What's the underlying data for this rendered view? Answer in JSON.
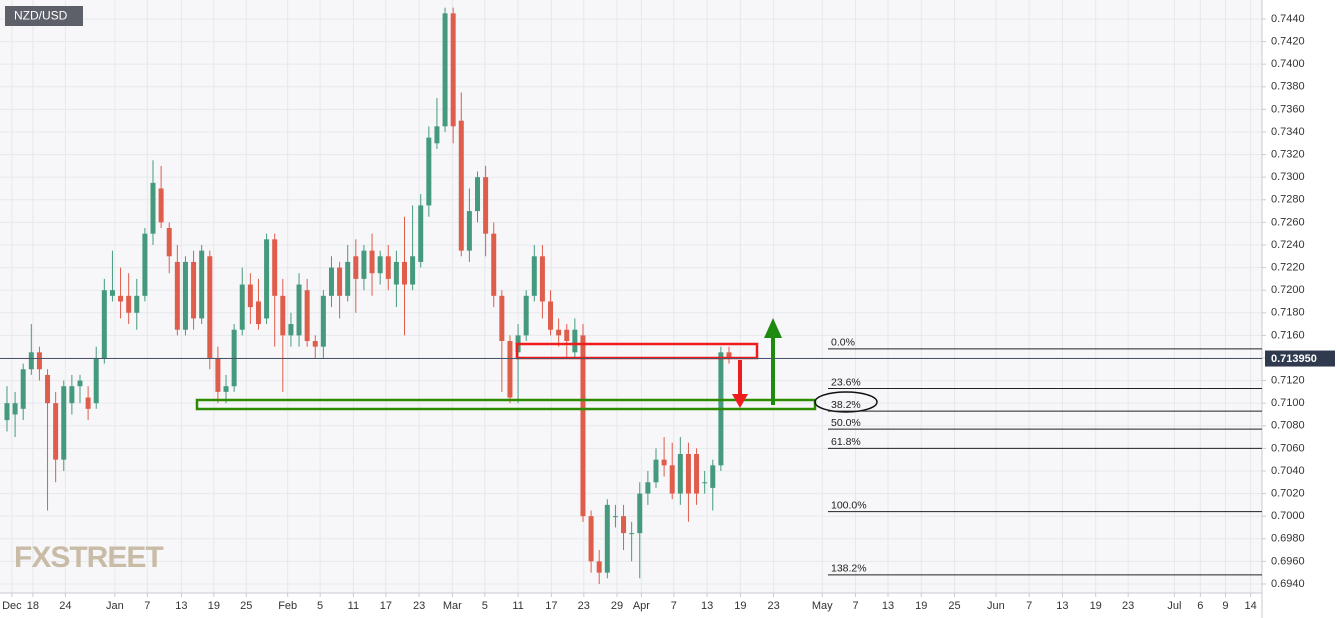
{
  "chart_data": {
    "type": "candlestick",
    "title": "NZD/USD",
    "watermark": "FXSTREET",
    "up_color": "#459a7e",
    "down_color": "#df5d4b",
    "x": [
      0,
      1,
      2,
      3,
      4,
      5,
      6,
      7,
      8,
      9,
      10,
      11,
      12,
      13,
      14,
      15,
      16,
      17,
      18,
      19,
      20,
      21,
      22,
      23,
      24,
      25,
      26,
      27,
      28,
      29,
      30,
      31,
      32,
      33,
      34,
      35,
      36,
      37,
      38,
      39,
      40,
      41,
      42,
      43,
      44,
      45,
      46,
      47,
      48,
      49,
      50,
      51,
      52,
      53,
      54,
      55,
      56,
      57,
      58,
      59,
      60,
      61,
      62,
      63,
      64,
      65,
      66,
      67,
      68,
      69,
      70,
      71,
      72,
      73,
      74,
      75,
      76,
      77,
      78,
      79,
      80,
      81,
      82,
      83,
      84,
      85,
      86,
      87,
      88,
      89
    ],
    "open": [
      0.7085,
      0.709,
      0.7095,
      0.713,
      0.7145,
      0.7125,
      0.71,
      0.705,
      0.71,
      0.7115,
      0.7105,
      0.71,
      0.714,
      0.7195,
      0.7195,
      0.7195,
      0.718,
      0.7195,
      0.725,
      0.729,
      0.7255,
      0.7225,
      0.7165,
      0.7225,
      0.7175,
      0.723,
      0.714,
      0.711,
      0.7115,
      0.7165,
      0.7205,
      0.719,
      0.7175,
      0.7245,
      0.7195,
      0.716,
      0.716,
      0.72,
      0.7155,
      0.715,
      0.7195,
      0.722,
      0.7195,
      0.723,
      0.721,
      0.7235,
      0.7215,
      0.723,
      0.7205,
      0.7225,
      0.7205,
      0.7225,
      0.7275,
      0.733,
      0.7345,
      0.7445,
      0.735,
      0.7235,
      0.727,
      0.73,
      0.725,
      0.7195,
      0.7155,
      0.7145,
      0.716,
      0.7195,
      0.723,
      0.719,
      0.7165,
      0.7165,
      0.7145,
      0.716,
      0.7,
      0.696,
      0.695,
      0.7,
      0.7,
      0.6985,
      0.6985,
      0.702,
      0.703,
      0.705,
      0.7045,
      0.702,
      0.7055,
      0.7055,
      0.703,
      0.7025,
      0.7045,
      0.7145
    ],
    "high": [
      0.7115,
      0.711,
      0.7135,
      0.717,
      0.715,
      0.713,
      0.711,
      0.712,
      0.7125,
      0.7125,
      0.7115,
      0.715,
      0.721,
      0.7235,
      0.722,
      0.7215,
      0.721,
      0.7255,
      0.7315,
      0.731,
      0.726,
      0.724,
      0.723,
      0.7235,
      0.724,
      0.7235,
      0.715,
      0.7125,
      0.717,
      0.722,
      0.7215,
      0.721,
      0.725,
      0.725,
      0.721,
      0.718,
      0.7215,
      0.721,
      0.716,
      0.72,
      0.723,
      0.7225,
      0.724,
      0.7245,
      0.724,
      0.725,
      0.7235,
      0.724,
      0.7235,
      0.7265,
      0.7275,
      0.7285,
      0.7345,
      0.737,
      0.745,
      0.745,
      0.7375,
      0.729,
      0.7305,
      0.731,
      0.726,
      0.72,
      0.716,
      0.717,
      0.72,
      0.724,
      0.724,
      0.72,
      0.7175,
      0.717,
      0.7175,
      0.717,
      0.7005,
      0.697,
      0.7015,
      0.701,
      0.701,
      0.6995,
      0.703,
      0.704,
      0.706,
      0.707,
      0.7065,
      0.707,
      0.7065,
      0.706,
      0.704,
      0.705,
      0.715,
      0.715
    ],
    "low": [
      0.7075,
      0.707,
      0.7085,
      0.7125,
      0.712,
      0.7005,
      0.703,
      0.704,
      0.709,
      0.71,
      0.7085,
      0.7095,
      0.7135,
      0.719,
      0.7175,
      0.717,
      0.7165,
      0.719,
      0.724,
      0.7255,
      0.7215,
      0.716,
      0.716,
      0.7165,
      0.717,
      0.713,
      0.71,
      0.71,
      0.711,
      0.716,
      0.717,
      0.7165,
      0.717,
      0.715,
      0.711,
      0.715,
      0.715,
      0.715,
      0.714,
      0.714,
      0.7185,
      0.7175,
      0.719,
      0.718,
      0.72,
      0.7195,
      0.7205,
      0.72,
      0.7185,
      0.716,
      0.72,
      0.722,
      0.7265,
      0.7325,
      0.734,
      0.733,
      0.723,
      0.7225,
      0.726,
      0.723,
      0.7185,
      0.711,
      0.71,
      0.71,
      0.7155,
      0.719,
      0.7175,
      0.716,
      0.715,
      0.714,
      0.714,
      0.6995,
      0.695,
      0.694,
      0.6945,
      0.699,
      0.697,
      0.696,
      0.6945,
      0.701,
      0.7025,
      0.7035,
      0.7015,
      0.701,
      0.6995,
      0.701,
      0.702,
      0.7005,
      0.704,
      0.7135
    ],
    "close": [
      0.71,
      0.71,
      0.713,
      0.7145,
      0.713,
      0.71,
      0.705,
      0.7115,
      0.7115,
      0.712,
      0.7095,
      0.714,
      0.72,
      0.72,
      0.719,
      0.718,
      0.7195,
      0.725,
      0.7295,
      0.726,
      0.723,
      0.7165,
      0.7225,
      0.7175,
      0.7235,
      0.714,
      0.711,
      0.7115,
      0.7165,
      0.7205,
      0.7185,
      0.717,
      0.7245,
      0.7195,
      0.716,
      0.717,
      0.7205,
      0.7155,
      0.715,
      0.7195,
      0.722,
      0.7195,
      0.7225,
      0.721,
      0.7235,
      0.7215,
      0.723,
      0.721,
      0.7225,
      0.7205,
      0.723,
      0.7275,
      0.7335,
      0.7345,
      0.7445,
      0.7345,
      0.7235,
      0.727,
      0.73,
      0.725,
      0.7195,
      0.7155,
      0.7105,
      0.716,
      0.7195,
      0.723,
      0.719,
      0.7165,
      0.716,
      0.7155,
      0.7165,
      0.7,
      0.696,
      0.695,
      0.701,
      0.7,
      0.6985,
      0.6985,
      0.702,
      0.703,
      0.705,
      0.7045,
      0.702,
      0.7055,
      0.702,
      0.702,
      0.703,
      0.7045,
      0.7145,
      0.714
    ],
    "xlim": [
      -0.86,
      154.7
    ],
    "xticks": [
      {
        "value": 0.6,
        "label": "Dec"
      },
      {
        "value": 3.2,
        "label": "18"
      },
      {
        "value": 7.2,
        "label": "24"
      },
      {
        "value": 13.3,
        "label": "Jan"
      },
      {
        "value": 17.3,
        "label": "7"
      },
      {
        "value": 21.5,
        "label": "13"
      },
      {
        "value": 25.5,
        "label": "19"
      },
      {
        "value": 29.5,
        "label": "25"
      },
      {
        "value": 34.6,
        "label": "Feb"
      },
      {
        "value": 38.6,
        "label": "5"
      },
      {
        "value": 42.7,
        "label": "11"
      },
      {
        "value": 46.7,
        "label": "17"
      },
      {
        "value": 50.8,
        "label": "23"
      },
      {
        "value": 54.9,
        "label": "Mar"
      },
      {
        "value": 58.9,
        "label": "5"
      },
      {
        "value": 63.0,
        "label": "11"
      },
      {
        "value": 67.1,
        "label": "17"
      },
      {
        "value": 71.1,
        "label": "23"
      },
      {
        "value": 75.2,
        "label": "29"
      },
      {
        "value": 78.2,
        "label": "Apr"
      },
      {
        "value": 82.2,
        "label": "7"
      },
      {
        "value": 86.3,
        "label": "13"
      },
      {
        "value": 90.4,
        "label": "19"
      },
      {
        "value": 94.5,
        "label": "23"
      },
      {
        "value": 100.5,
        "label": "May"
      },
      {
        "value": 104.6,
        "label": "7"
      },
      {
        "value": 108.6,
        "label": "13"
      },
      {
        "value": 112.7,
        "label": "19"
      },
      {
        "value": 116.8,
        "label": "25"
      },
      {
        "value": 121.9,
        "label": "Jun"
      },
      {
        "value": 126.0,
        "label": "7"
      },
      {
        "value": 130.1,
        "label": "13"
      },
      {
        "value": 134.2,
        "label": "19"
      },
      {
        "value": 138.2,
        "label": "23"
      },
      {
        "value": 143.9,
        "label": "Jul"
      },
      {
        "value": 147.1,
        "label": "6"
      },
      {
        "value": 150.2,
        "label": "9"
      },
      {
        "value": 153.3,
        "label": "14"
      }
    ],
    "ylim": [
      0.6932,
      0.74568
    ],
    "yticks": [
      {
        "value": 0.694,
        "label": "0.6940"
      },
      {
        "value": 0.696,
        "label": "0.6960"
      },
      {
        "value": 0.698,
        "label": "0.6980"
      },
      {
        "value": 0.7,
        "label": "0.7000"
      },
      {
        "value": 0.702,
        "label": "0.7020"
      },
      {
        "value": 0.704,
        "label": "0.7040"
      },
      {
        "value": 0.706,
        "label": "0.7060"
      },
      {
        "value": 0.708,
        "label": "0.7080"
      },
      {
        "value": 0.71,
        "label": "0.7100"
      },
      {
        "value": 0.712,
        "label": "0.7120"
      },
      {
        "value": 0.714,
        "label": "0.7140"
      },
      {
        "value": 0.716,
        "label": "0.7160"
      },
      {
        "value": 0.718,
        "label": "0.7180"
      },
      {
        "value": 0.72,
        "label": "0.7200"
      },
      {
        "value": 0.722,
        "label": "0.7220"
      },
      {
        "value": 0.724,
        "label": "0.7240"
      },
      {
        "value": 0.726,
        "label": "0.7260"
      },
      {
        "value": 0.728,
        "label": "0.7280"
      },
      {
        "value": 0.73,
        "label": "0.7300"
      },
      {
        "value": 0.732,
        "label": "0.7320"
      },
      {
        "value": 0.734,
        "label": "0.7340"
      },
      {
        "value": 0.736,
        "label": "0.7360"
      },
      {
        "value": 0.738,
        "label": "0.7380"
      },
      {
        "value": 0.74,
        "label": "0.7400"
      },
      {
        "value": 0.742,
        "label": "0.7420"
      },
      {
        "value": 0.744,
        "label": "0.7440"
      }
    ],
    "grid": true,
    "last_price": {
      "value": 0.71395,
      "label": "0.713950"
    },
    "fib_levels": [
      {
        "value": 0.7148,
        "label": "0.0%"
      },
      {
        "value": 0.7113,
        "label": "23.6%"
      },
      {
        "value": 0.7093,
        "label": "38.2%"
      },
      {
        "value": 0.7077,
        "label": "50.0%"
      },
      {
        "value": 0.706,
        "label": "61.8%"
      },
      {
        "value": 0.7004,
        "label": "100.0%"
      },
      {
        "value": 0.6948,
        "label": "138.2%"
      }
    ]
  }
}
